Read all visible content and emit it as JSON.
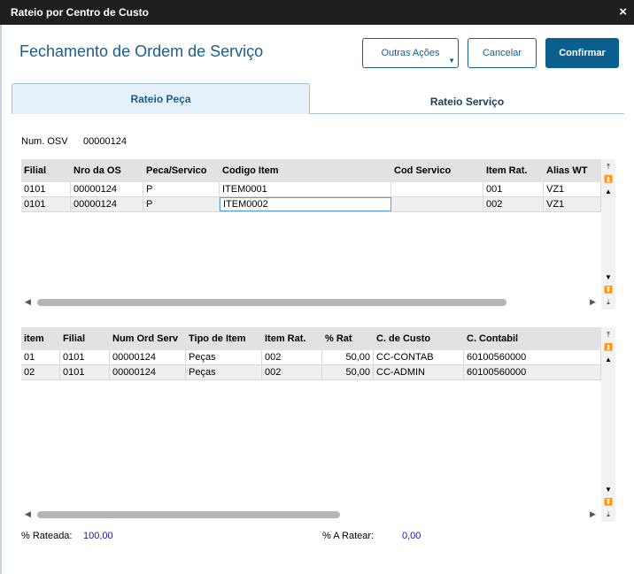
{
  "window": {
    "title": "Rateio por Centro de Custo",
    "close": "×"
  },
  "page": {
    "heading": "Fechamento de Ordem de Serviço"
  },
  "buttons": {
    "more_actions": "Outras Ações",
    "cancel": "Cancelar",
    "confirm": "Confirmar"
  },
  "tabs": [
    {
      "label": "Rateio Peça"
    },
    {
      "label": "Rateio Serviço"
    }
  ],
  "osv": {
    "label": "Num. OSV",
    "value": "00000124"
  },
  "grid1": {
    "columns": [
      "Filial",
      "Nro da OS",
      "Peca/Servico",
      "Codigo Item",
      "Cod Servico",
      "Item Rat.",
      "Alias WT"
    ],
    "rows": [
      [
        "0101",
        "00000124",
        "P",
        "ITEM0001",
        "",
        "001",
        "VZ1"
      ],
      [
        "0101",
        "00000124",
        "P",
        "ITEM0002",
        "",
        "002",
        "VZ1"
      ]
    ]
  },
  "grid2": {
    "columns": [
      "item",
      "Filial",
      "Num Ord Serv",
      "Tipo de Item",
      "Item Rat.",
      "% Rat",
      "C. de Custo",
      "C. Contabil"
    ],
    "rows": [
      [
        "01",
        "0101",
        "00000124",
        "Peças",
        "002",
        "50,00",
        "CC-CONTAB",
        "60100560000"
      ],
      [
        "02",
        "0101",
        "00000124",
        "Peças",
        "002",
        "50,00",
        "CC-ADMIN",
        "60100560000"
      ]
    ]
  },
  "totals": {
    "rateada_label": "% Rateada:",
    "rateada_value": "100,00",
    "a_ratear_label": "% A Ratear:",
    "a_ratear_value": "0,00"
  },
  "icons": {
    "close": "close-icon",
    "dropdown": "chevron-down-icon",
    "scroll": [
      "scroll-top-icon",
      "scroll-page-up-icon",
      "scroll-up-icon",
      "scroll-down-icon",
      "scroll-page-down-icon",
      "scroll-bottom-icon",
      "scroll-left-icon",
      "scroll-right-icon"
    ]
  }
}
